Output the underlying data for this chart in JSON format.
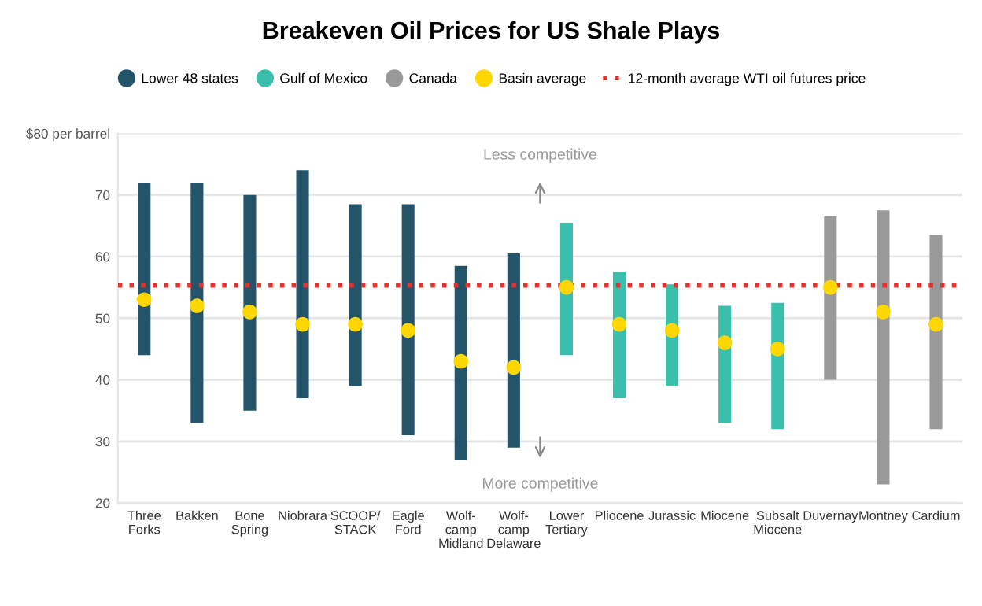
{
  "chart_data": {
    "type": "bar",
    "title": "Breakeven Oil Prices for US Shale Plays",
    "categories": [
      "Three\nForks",
      "Bakken",
      "Bone\nSpring",
      "Niobrara",
      "SCOOP/\nSTACK",
      "Eagle\nFord",
      "Wolf-\ncamp\nMidland",
      "Wolf-\ncamp\nDelaware",
      "Lower\nTertiary",
      "Pliocene",
      "Jurassic",
      "Miocene",
      "Subsalt\nMiocene",
      "Duvernay",
      "Montney",
      "Cardium"
    ],
    "series": [
      {
        "name": "Lower 48 states",
        "color": "#23546a",
        "base": [
          44,
          33,
          35,
          37,
          39,
          31,
          27,
          29,
          null,
          null,
          null,
          null,
          null,
          null,
          null,
          null
        ],
        "values": [
          28,
          39,
          35,
          37,
          29.5,
          37.5,
          31.5,
          31.5,
          null,
          null,
          null,
          null,
          null,
          null,
          null,
          null
        ]
      },
      {
        "name": "Gulf of Mexico",
        "color": "#3bbfad",
        "base": [
          null,
          null,
          null,
          null,
          null,
          null,
          null,
          null,
          44,
          37,
          39,
          33,
          32,
          null,
          null,
          null
        ],
        "values": [
          null,
          null,
          null,
          null,
          null,
          null,
          null,
          null,
          21.5,
          20.5,
          16.5,
          19,
          20.5,
          null,
          null,
          null
        ]
      },
      {
        "name": "Canada",
        "color": "#999999",
        "base": [
          null,
          null,
          null,
          null,
          null,
          null,
          null,
          null,
          null,
          null,
          null,
          null,
          null,
          40,
          23,
          32
        ],
        "values": [
          null,
          null,
          null,
          null,
          null,
          null,
          null,
          null,
          null,
          null,
          null,
          null,
          null,
          26.5,
          44.5,
          31.5
        ]
      },
      {
        "name": "Basin average",
        "type": "scatter",
        "color": "#ffd700",
        "values": [
          53,
          52,
          51,
          49,
          49,
          48,
          43,
          42,
          55,
          49,
          48,
          46,
          45,
          55,
          51,
          49
        ]
      }
    ],
    "ref_lines": [
      {
        "axis": "y",
        "value": 55.3,
        "label": "12-month average WTI oil futures price",
        "color": "#e8302a",
        "line_style": "dotted"
      }
    ],
    "annotations": [
      "Less competitive",
      "More competitive"
    ],
    "ylim": [
      20,
      80
    ],
    "yticks": [
      20,
      30,
      40,
      50,
      60,
      70,
      {
        "value": 80,
        "label": "$80 per barrel"
      }
    ],
    "grid": "y",
    "legend": "top",
    "marker": "circle"
  }
}
